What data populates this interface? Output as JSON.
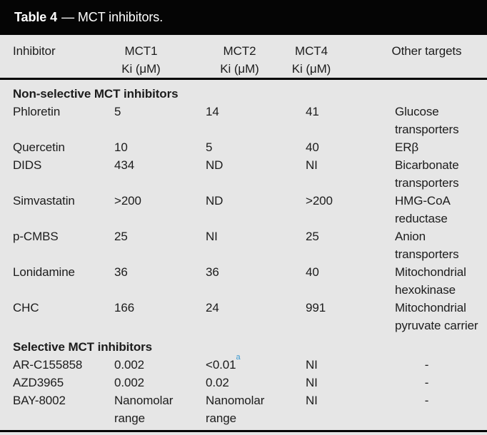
{
  "title": {
    "bold": "Table 4",
    "rest": "— MCT inhibitors."
  },
  "header": {
    "inhibitor": {
      "line1": "Inhibitor",
      "line2": ""
    },
    "mct1": {
      "line1": "MCT1",
      "line2": "Ki (μM)"
    },
    "mct2": {
      "line1": "MCT2",
      "line2": "Ki (μM)"
    },
    "mct4": {
      "line1": "MCT4",
      "line2": "Ki (μM)"
    },
    "other": {
      "line1": "Other targets",
      "line2": ""
    }
  },
  "sections": [
    {
      "label": "Non-selective MCT inhibitors",
      "rows": [
        {
          "inhibitor": "Phloretin",
          "mct1": "5",
          "mct2": "14",
          "mct4": "41",
          "other": "Glucose\ntransporters"
        },
        {
          "inhibitor": "Quercetin",
          "mct1": "10",
          "mct2": "5",
          "mct4": "40",
          "other": "ERβ"
        },
        {
          "inhibitor": "DIDS",
          "mct1": "434",
          "mct2": "ND",
          "mct4": "NI",
          "other": "Bicarbonate\ntransporters"
        },
        {
          "inhibitor": "Simvastatin",
          "mct1": ">200",
          "mct2": "ND",
          "mct4": ">200",
          "other": "HMG-CoA\nreductase"
        },
        {
          "inhibitor": "p-CMBS",
          "mct1": "25",
          "mct2": "NI",
          "mct4": "25",
          "other": "Anion\ntransporters"
        },
        {
          "inhibitor": "Lonidamine",
          "mct1": "36",
          "mct2": "36",
          "mct4": "40",
          "other": "Mitochondrial\nhexokinase"
        },
        {
          "inhibitor": "CHC",
          "mct1": "166",
          "mct2": "24",
          "mct4": "991",
          "other": "Mitochondrial\npyruvate carrier"
        }
      ]
    },
    {
      "label": "Selective MCT inhibitors",
      "rows": [
        {
          "inhibitor": "AR-C155858",
          "mct1": "0.002",
          "mct2": "<0.01",
          "mct2_sup": "a",
          "mct4": "NI",
          "other": "-"
        },
        {
          "inhibitor": "AZD3965",
          "mct1": "0.002",
          "mct2": "0.02",
          "mct4": "NI",
          "other": "-"
        },
        {
          "inhibitor": "BAY-8002",
          "mct1": "Nanomolar\nrange",
          "mct2": "Nanomolar\nrange",
          "mct4": "NI",
          "other": "-"
        }
      ]
    }
  ],
  "colors": {
    "title_bar": "#050505",
    "body_bg": "#e6e6e6",
    "text": "#1c1c1c",
    "footnote_marker": "#3d9ad1"
  }
}
